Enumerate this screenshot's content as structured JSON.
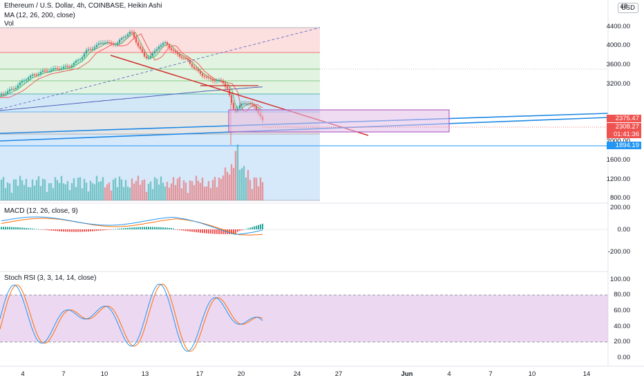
{
  "header": {
    "title": "Ethereum / U.S. Dollar, 4h, COINBASE, Heikin Ashi",
    "ma_label": "MA (12, 26, 200, close)",
    "vol_label": "Vol",
    "currency_button": "USD"
  },
  "macd": {
    "label": "MACD (12, 26, close, 9)"
  },
  "stoch": {
    "label": "Stoch RSI (3, 3, 14, 14, close)"
  },
  "price_axis": [
    "4400.00",
    "4000.00",
    "3600.00",
    "3200.00",
    "2000.00",
    "1600.00",
    "1200.00",
    "800.00"
  ],
  "price_axis_top_partial": "48",
  "price_badges": {
    "current_high": "2375.47",
    "current_price": "2308.27",
    "countdown": "01:41:36",
    "support_level": "1894.19"
  },
  "macd_axis": [
    "200.00",
    "0.00",
    "-200.00"
  ],
  "stoch_axis": [
    "100.00",
    "80.00",
    "60.00",
    "40.00",
    "20.00",
    "0.00"
  ],
  "date_axis": [
    "4",
    "7",
    "10",
    "13",
    "17",
    "20",
    "24",
    "27",
    "Jun",
    "4",
    "7",
    "10",
    "14"
  ],
  "colors": {
    "bull_candle": "#26a69a",
    "bear_candle": "#ef5350",
    "ma_fast": "#4caf50",
    "ma_mid": "#ef5350",
    "ma_slow": "#3f51b5",
    "trendline_red": "#d32f2f",
    "trendline_blue": "#1e88e5",
    "macd_line": "#2196f3",
    "signal_line": "#ff6d00",
    "stoch_k": "#2196f3",
    "stoch_d": "#ff6d00",
    "stoch_band": "#e1bee7",
    "price_badge_red": "#ef5350",
    "support_badge_blue": "#2196f3"
  }
}
